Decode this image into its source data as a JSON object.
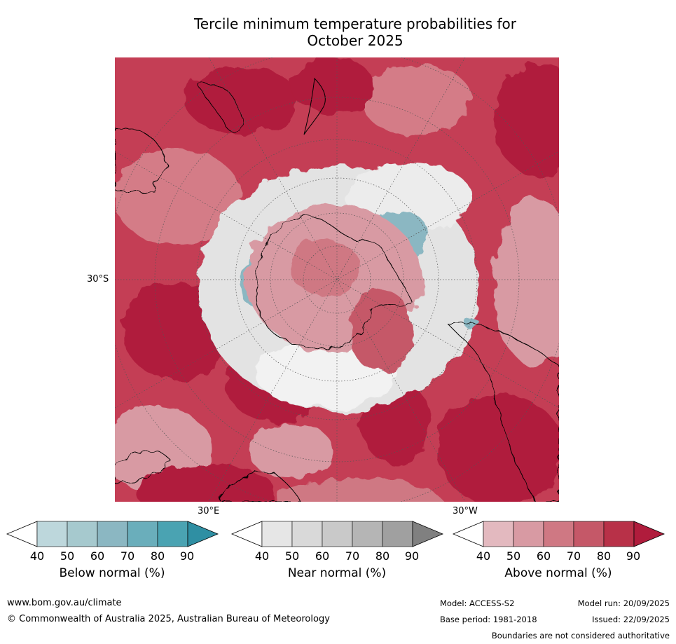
{
  "title_line1": "Tercile minimum temperature probabilities for",
  "title_line2": "October 2025",
  "map": {
    "lat_label": "30°S",
    "lon_labels": {
      "left": "30°E",
      "right": "30°W"
    },
    "colors": {
      "land_border": "#000000",
      "grid": "#555555"
    }
  },
  "colorbars": [
    {
      "label": "Below normal (%)",
      "ticks": [
        "40",
        "50",
        "60",
        "70",
        "80",
        "90"
      ],
      "colors": [
        "#ffffff",
        "#bdd7dc",
        "#a6c9ce",
        "#8bb7c2",
        "#6aaebb",
        "#4aa3b2",
        "#2f8fa3"
      ]
    },
    {
      "label": "Near normal (%)",
      "ticks": [
        "40",
        "50",
        "60",
        "70",
        "80",
        "90"
      ],
      "colors": [
        "#ffffff",
        "#e6e6e6",
        "#d9d9d9",
        "#c9c9c9",
        "#b5b5b5",
        "#a0a0a0",
        "#808080"
      ]
    },
    {
      "label": "Above normal (%)",
      "ticks": [
        "40",
        "50",
        "60",
        "70",
        "80",
        "90"
      ],
      "colors": [
        "#ffffff",
        "#e3b9bf",
        "#d89aa3",
        "#cf7883",
        "#c55868",
        "#b83148",
        "#b01c3c"
      ]
    }
  ],
  "footer": {
    "website": "www.bom.gov.au/climate",
    "copyright": "© Commonwealth of Australia 2025, Australian Bureau of Meteorology",
    "model": "Model: ACCESS-S2",
    "base_period": "Base period: 1981-2018",
    "model_run": "Model run: 20/09/2025",
    "issued": "Issued: 22/09/2025",
    "disclaimer": "Boundaries are not considered authoritative"
  }
}
